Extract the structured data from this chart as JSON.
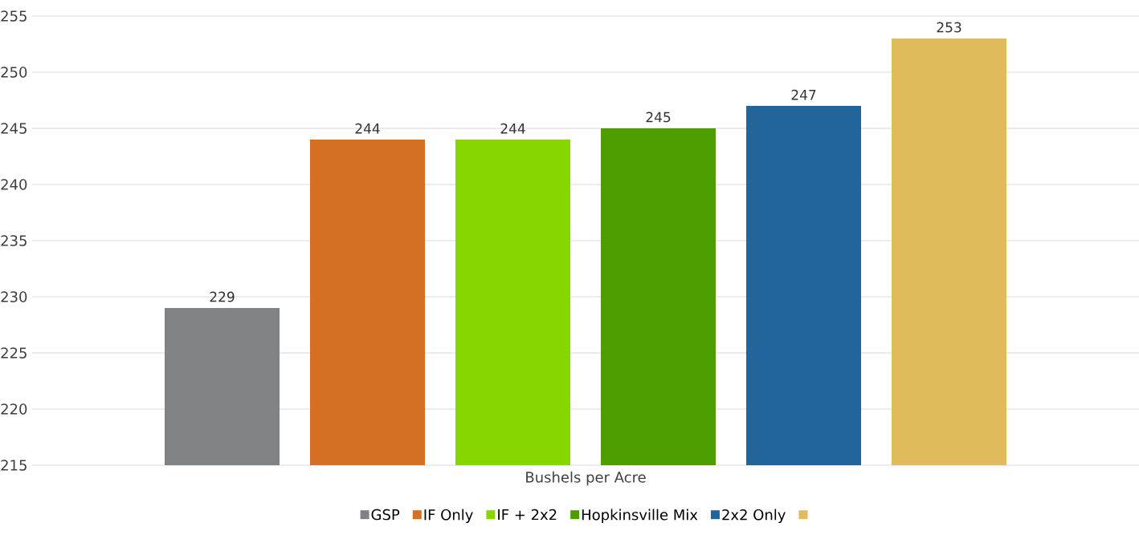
{
  "chart_data": {
    "type": "bar",
    "categories": [
      "Bushels per Acre"
    ],
    "series": [
      {
        "name": "GSP",
        "color": "#808285",
        "values": [
          229
        ]
      },
      {
        "name": "IF Only",
        "color": "#d46f24",
        "values": [
          244
        ]
      },
      {
        "name": "IF + 2x2",
        "color": "#88d600",
        "values": [
          244
        ]
      },
      {
        "name": "Hopkinsville Mix",
        "color": "#4c9e00",
        "values": [
          245
        ]
      },
      {
        "name": "2x2 Only",
        "color": "#22659a",
        "values": [
          247
        ]
      },
      {
        "color": "#e0bb5e",
        "values": [
          253
        ]
      }
    ],
    "ylim": [
      215,
      255
    ],
    "yticks": [
      215,
      220,
      225,
      230,
      235,
      240,
      245,
      250,
      255
    ],
    "grid": "y",
    "legend": "bottom",
    "data_labels": true
  }
}
